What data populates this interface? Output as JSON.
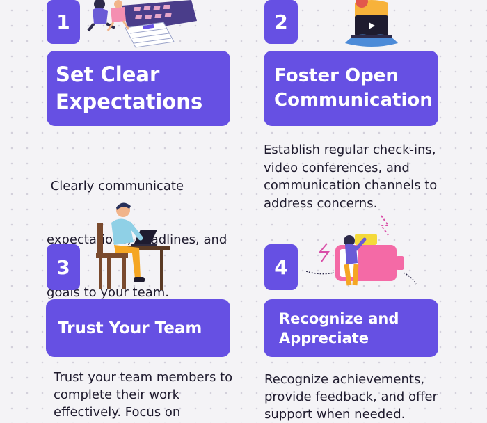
{
  "steps": [
    {
      "number": "1",
      "title_lines": [
        "Set Clear",
        "Expectations"
      ],
      "description_lines": [
        " Clearly communicate",
        "expectations, deadlines, and",
        "goals to your team."
      ],
      "icon": "calendar-planning-illustration"
    },
    {
      "number": "2",
      "title_lines": [
        "Foster Open",
        "Communication"
      ],
      "description_lines": [
        "Establish regular check-ins,",
        "video conferences, and",
        "communication channels to",
        "address concerns."
      ],
      "icon": "video-call-laptop-illustration"
    },
    {
      "number": "3",
      "title_lines": [
        "Trust Your Team"
      ],
      "description_lines": [
        "Trust your team members to",
        "complete their work",
        "effectively. Focus on"
      ],
      "icon": "person-working-at-desk-illustration"
    },
    {
      "number": "4",
      "title_lines": [
        "Recognize and",
        "Appreciate"
      ],
      "description_lines": [
        "Recognize achievements,",
        "provide feedback, and offer",
        "support when needed."
      ],
      "icon": "charging-battery-illustration"
    }
  ],
  "colors": {
    "accent": "#6650e3",
    "background": "#f4f3f6",
    "text": "#1f1b2e"
  }
}
